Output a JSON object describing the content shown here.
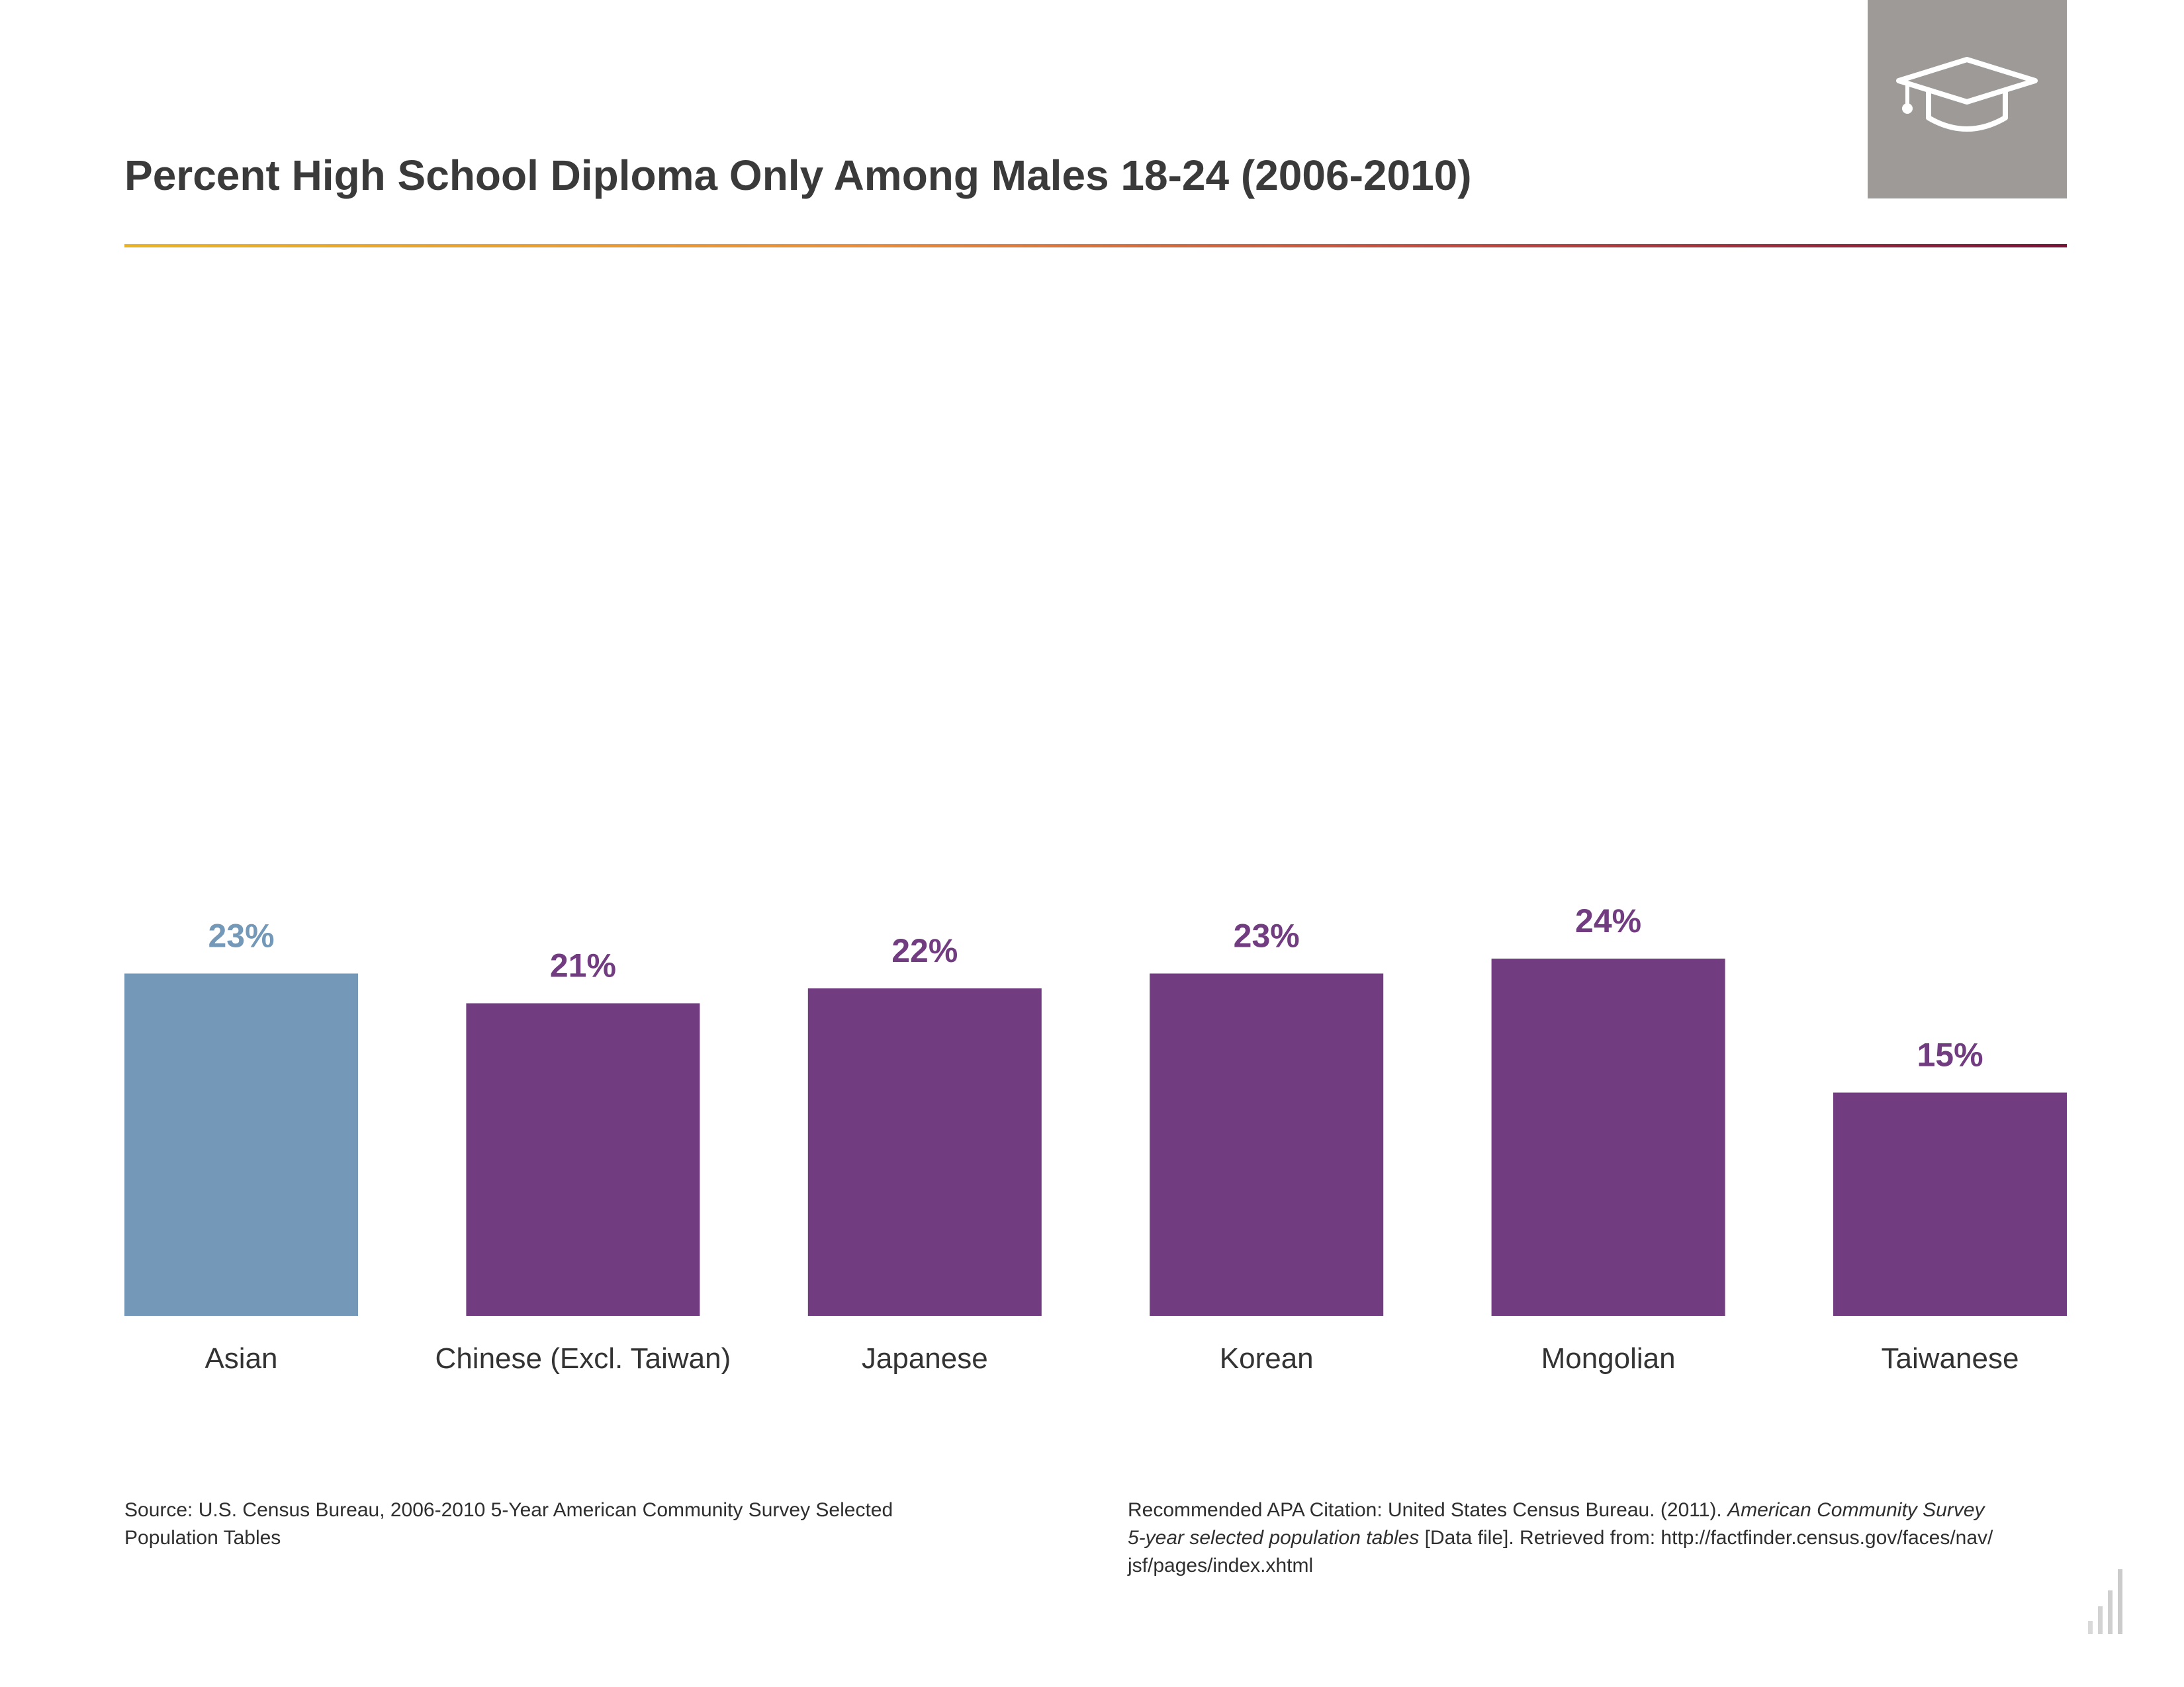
{
  "header": {
    "title": "Percent High School Diploma Only Among Males 18-24 (2006-2010)",
    "icon": "graduation-cap-icon"
  },
  "chart_data": {
    "type": "bar",
    "categories": [
      "Asian",
      "Chinese (Excl. Taiwan)",
      "Japanese",
      "Korean",
      "Mongolian",
      "Taiwanese"
    ],
    "values": [
      23,
      21,
      22,
      23,
      24,
      15
    ],
    "value_labels": [
      "23%",
      "21%",
      "22%",
      "23%",
      "24%",
      "15%"
    ],
    "colors": [
      "#7398b8",
      "#713c80",
      "#713c80",
      "#713c80",
      "#713c80",
      "#713c80"
    ],
    "title": "Percent High School Diploma Only Among Males 18-24 (2006-2010)",
    "xlabel": "",
    "ylabel": "",
    "ylim": [
      0,
      100
    ],
    "grid": false,
    "legend": "none"
  },
  "footer": {
    "source_line1": "Source: U.S. Census Bureau, 2006-2010 5-Year American Community Survey Selected",
    "source_line2": "Population Tables",
    "citation_prefix": "Recommended APA Citation: United States Census Bureau. (2011). ",
    "citation_italic1": "American Community Survey",
    "citation_italic2": "5-year selected population tables",
    "citation_mid": " [Data file]. Retrieved from: http://factfinder.census.gov/faces/nav/",
    "citation_end": "jsf/pages/index.xhtml"
  }
}
